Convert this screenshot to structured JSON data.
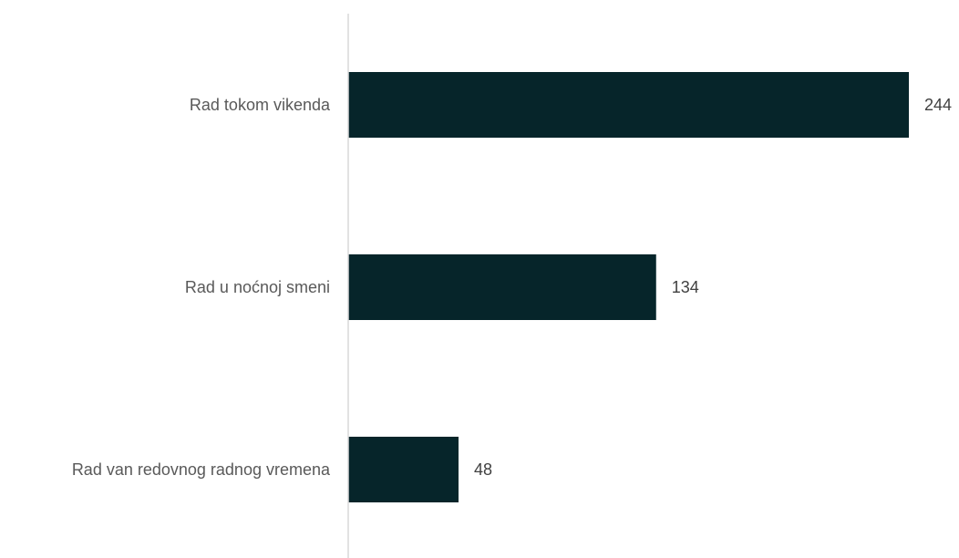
{
  "chart_data": {
    "type": "bar",
    "orientation": "horizontal",
    "categories": [
      "Rad tokom vikenda",
      "Rad u noćnoj smeni",
      "Rad van redovnog radnog vremena"
    ],
    "values": [
      244,
      134,
      48
    ],
    "xlim": [
      0,
      244
    ],
    "bar_color": "#06252a",
    "axis_color": "#d9d9d9",
    "title": "",
    "xlabel": "",
    "ylabel": "",
    "grid": false,
    "legend": "none",
    "data_labels": true
  }
}
